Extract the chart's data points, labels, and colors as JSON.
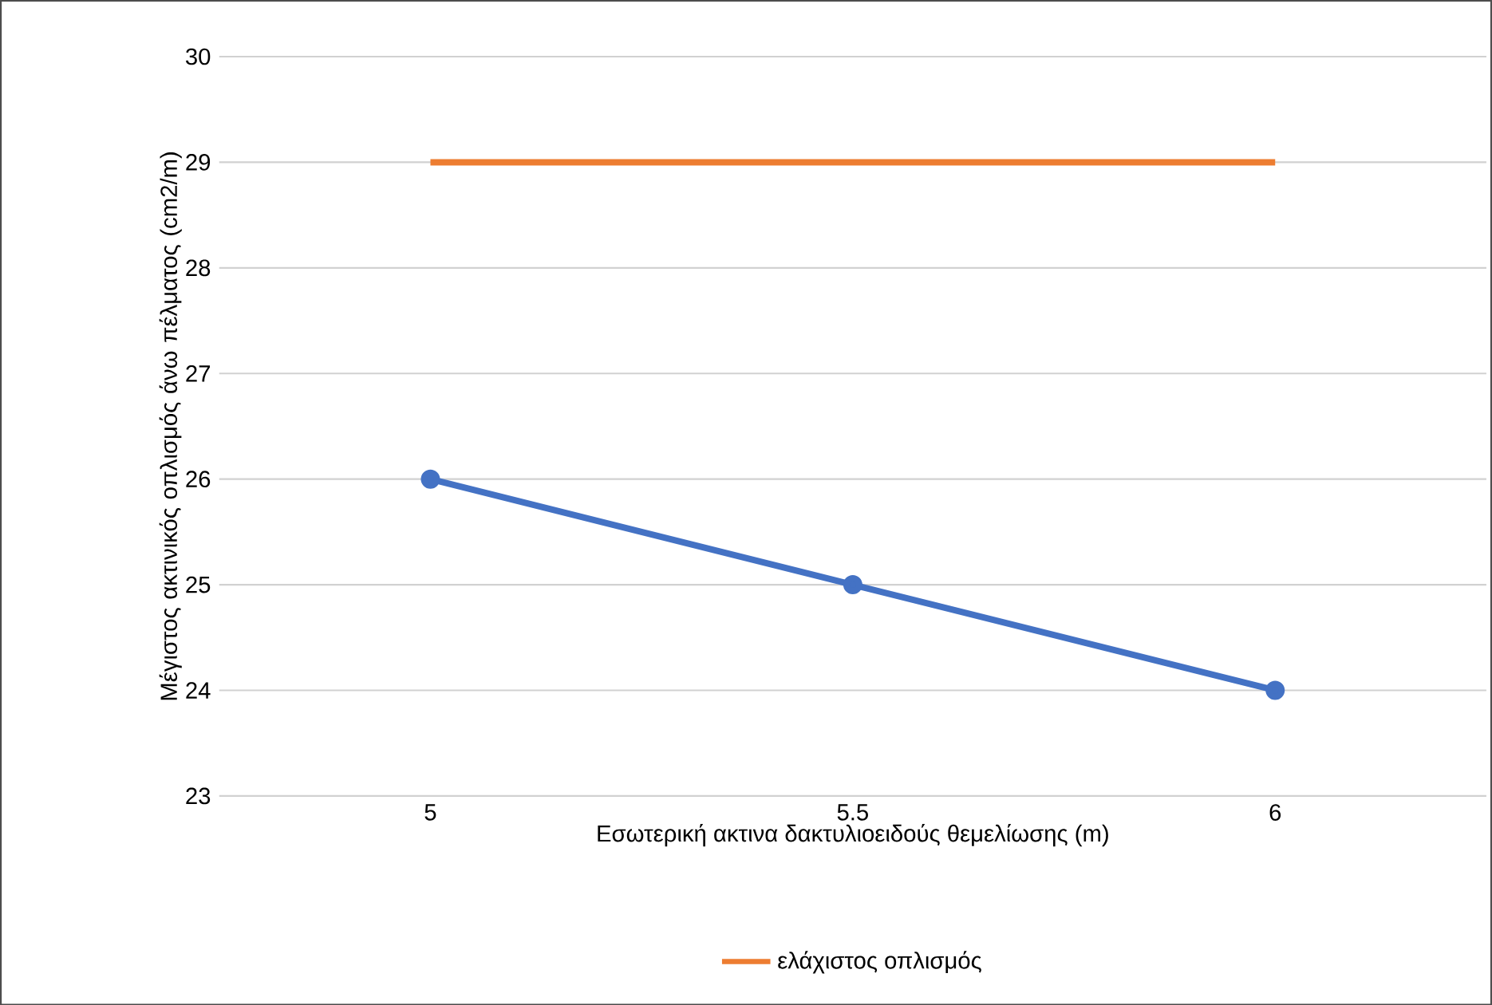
{
  "chart_data": {
    "type": "line",
    "ylabel": "Μέγιστος ακτινικός οπλισμός άνω πέλματος (cm2/m)",
    "xlabel": "Εσωτερική ακτινα δακτυλιοειδούς θεμελίωσης (m)",
    "categories": [
      "5",
      "5.5",
      "6"
    ],
    "series": [
      {
        "color": "#4472c4",
        "values": [
          26,
          25,
          24
        ],
        "marker": "circle"
      },
      {
        "name": "ελάχιστος οπλισμός",
        "color": "#ed7d31",
        "values": [
          29,
          29,
          29
        ],
        "marker": "none"
      }
    ],
    "ylim": [
      23,
      30
    ],
    "yticks": [
      23,
      24,
      25,
      26,
      27,
      28,
      29,
      30
    ],
    "grid": "y",
    "legend": "bottom"
  }
}
